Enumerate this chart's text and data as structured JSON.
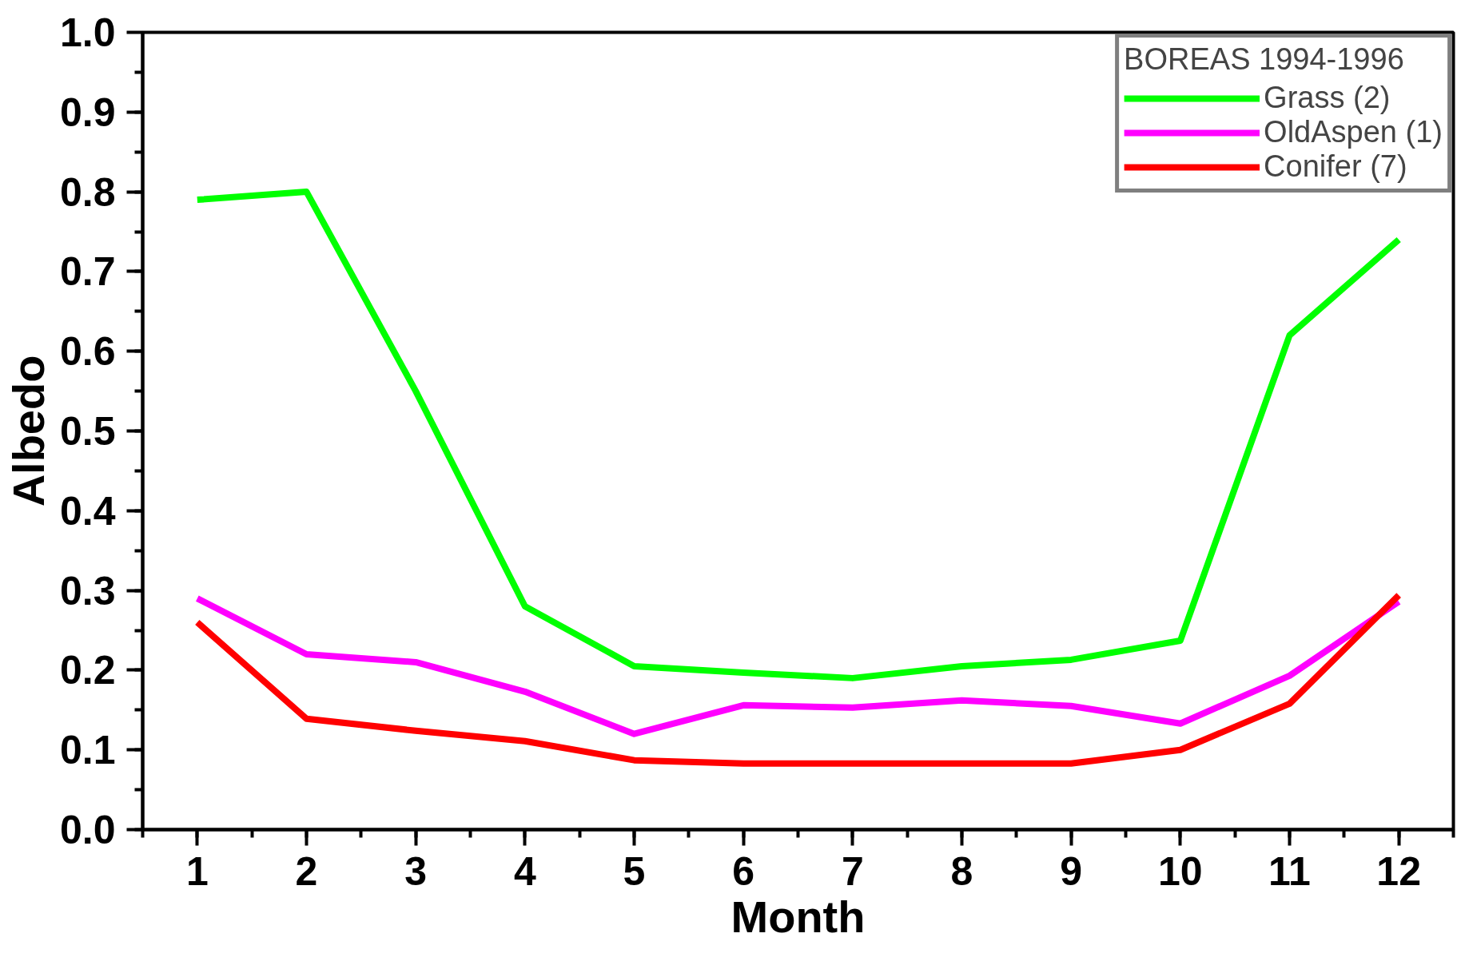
{
  "chart_data": {
    "type": "line",
    "xlabel": "Month",
    "ylabel": "Albedo",
    "legend_title": "BOREAS 1994-1996",
    "x": [
      1,
      2,
      3,
      4,
      5,
      6,
      7,
      8,
      9,
      10,
      11,
      12
    ],
    "series": [
      {
        "name": "Grass (2)",
        "color": "#00ff00",
        "values": [
          0.79,
          0.8,
          0.55,
          0.28,
          0.205,
          0.197,
          0.19,
          0.205,
          0.213,
          0.237,
          0.62,
          0.74
        ]
      },
      {
        "name": "OldAspen (1)",
        "color": "#ff00ff",
        "values": [
          0.29,
          0.22,
          0.21,
          0.173,
          0.12,
          0.156,
          0.153,
          0.162,
          0.155,
          0.133,
          0.193,
          0.286
        ]
      },
      {
        "name": "Conifer (7)",
        "color": "#ff0000",
        "values": [
          0.26,
          0.139,
          0.124,
          0.111,
          0.087,
          0.083,
          0.083,
          0.083,
          0.083,
          0.1,
          0.158,
          0.294
        ]
      }
    ],
    "xlim": [
      0.5,
      12.5
    ],
    "xticks": [
      1,
      2,
      3,
      4,
      5,
      6,
      7,
      8,
      9,
      10,
      11,
      12
    ],
    "ylim": [
      0.0,
      1.0
    ],
    "yticks": [
      {
        "value": 0.0,
        "label": "0.0"
      },
      {
        "value": 0.1,
        "label": "0.1"
      },
      {
        "value": 0.2,
        "label": "0.2"
      },
      {
        "value": 0.3,
        "label": "0.3"
      },
      {
        "value": 0.4,
        "label": "0.4"
      },
      {
        "value": 0.5,
        "label": "0.5"
      },
      {
        "value": 0.6,
        "label": "0.6"
      },
      {
        "value": 0.7,
        "label": "0.7"
      },
      {
        "value": 0.8,
        "label": "0.8"
      },
      {
        "value": 0.9,
        "label": "0.9"
      },
      {
        "value": 1.0,
        "label": "1.0"
      }
    ],
    "grid": false,
    "legend": "top right",
    "marker": "none",
    "line_style": "solid"
  }
}
